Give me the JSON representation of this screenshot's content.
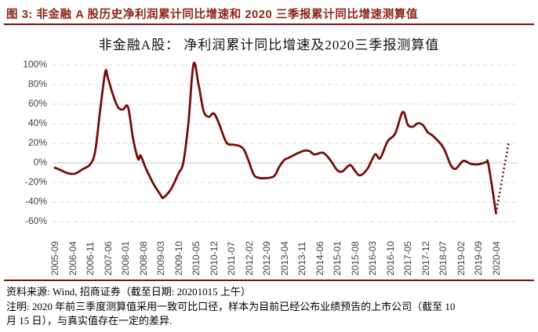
{
  "figure": {
    "caption": "图 3:  非金融 A 股历史净利润累计同比增速和 2020 三季报累计同比增速测算值"
  },
  "footer": {
    "source": "资料来源: Wind, 招商证券（截至日期: 20201015 上午）",
    "note_line1": "注明: 2020 年前三季度测算值采用一致可比口径，样本为目前已经公布业绩预告的上市公司（截至 10",
    "note_line2": "月 15 日），与真实值存在一定的差异."
  },
  "colors": {
    "caption_red": "#8B2415",
    "rule_red": "#7A140B",
    "line_maroon": "#750D06",
    "grid_gray": "#D9D9D9",
    "zero_line_gray": "#C4C4C4",
    "axis_text": "#404040"
  },
  "chart_data": {
    "type": "line",
    "title": "非金融A股： 净利润累计同比增速及2020三季报测算值",
    "xlabel": "",
    "ylabel": "",
    "ylim": [
      -60,
      100
    ],
    "grid": "dashed-horizontal",
    "legend": "none",
    "y_ticks": [
      {
        "label": "100%",
        "value": 100
      },
      {
        "label": "80%",
        "value": 80
      },
      {
        "label": "60%",
        "value": 60
      },
      {
        "label": "40%",
        "value": 40
      },
      {
        "label": "20%",
        "value": 20
      },
      {
        "label": "0%",
        "value": 0
      },
      {
        "label": "-20%",
        "value": -20
      },
      {
        "label": "-40%",
        "value": -40
      },
      {
        "label": "-60%",
        "value": -60
      }
    ],
    "x_tick_labels": [
      "2005-09",
      "2006-04",
      "2006-11",
      "2007-06",
      "2008-01",
      "2008-08",
      "2009-03",
      "2009-10",
      "2010-05",
      "2010-12",
      "2011-07",
      "2012-02",
      "2012-09",
      "2013-04",
      "2013-11",
      "2014-06",
      "2015-01",
      "2015-08",
      "2016-03",
      "2016-10",
      "2017-05",
      "2017-12",
      "2018-07",
      "2019-02",
      "2019-09",
      "2020-04"
    ],
    "x_tick_interval_months": 7,
    "series": [
      {
        "name": "净利润累计同比增速",
        "style": "solid",
        "color": "#750D06",
        "points": [
          [
            "2005-09",
            -5
          ],
          [
            "2005-11",
            -7
          ],
          [
            "2006-02",
            -10.5
          ],
          [
            "2006-05",
            -11
          ],
          [
            "2006-08",
            -6.5
          ],
          [
            "2006-11",
            -1.5
          ],
          [
            "2007-01",
            12
          ],
          [
            "2007-03",
            55
          ],
          [
            "2007-05",
            93
          ],
          [
            "2007-06",
            87
          ],
          [
            "2007-08",
            70
          ],
          [
            "2007-10",
            57
          ],
          [
            "2007-12",
            54.5
          ],
          [
            "2008-02",
            57
          ],
          [
            "2008-04",
            25
          ],
          [
            "2008-06",
            4
          ],
          [
            "2008-07",
            7.5
          ],
          [
            "2008-09",
            -5
          ],
          [
            "2008-12",
            -21
          ],
          [
            "2009-03",
            -33
          ],
          [
            "2009-04",
            -35.5
          ],
          [
            "2009-07",
            -27
          ],
          [
            "2009-10",
            -11
          ],
          [
            "2009-12",
            1
          ],
          [
            "2010-02",
            42
          ],
          [
            "2010-04",
            101
          ],
          [
            "2010-06",
            80
          ],
          [
            "2010-08",
            53
          ],
          [
            "2010-10",
            47
          ],
          [
            "2010-12",
            50.5
          ],
          [
            "2011-02",
            41
          ],
          [
            "2011-05",
            21
          ],
          [
            "2011-08",
            18.5
          ],
          [
            "2011-10",
            17.5
          ],
          [
            "2011-12",
            13.5
          ],
          [
            "2012-02",
            1
          ],
          [
            "2012-04",
            -12.5
          ],
          [
            "2012-06",
            -15.3
          ],
          [
            "2012-09",
            -15.5
          ],
          [
            "2012-12",
            -13.5
          ],
          [
            "2013-02",
            -4
          ],
          [
            "2013-04",
            3
          ],
          [
            "2013-06",
            5.5
          ],
          [
            "2013-09",
            9.5
          ],
          [
            "2013-12",
            12.5
          ],
          [
            "2014-02",
            12
          ],
          [
            "2014-04",
            8.6
          ],
          [
            "2014-07",
            10.5
          ],
          [
            "2014-09",
            7
          ],
          [
            "2014-11",
            0
          ],
          [
            "2015-01",
            -7.5
          ],
          [
            "2015-03",
            -8.8
          ],
          [
            "2015-06",
            -2.2
          ],
          [
            "2015-08",
            -8
          ],
          [
            "2015-10",
            -12.8
          ],
          [
            "2016-01",
            -6
          ],
          [
            "2016-04",
            8.6
          ],
          [
            "2016-06",
            4.6
          ],
          [
            "2016-09",
            22
          ],
          [
            "2016-12",
            30
          ],
          [
            "2017-03",
            52
          ],
          [
            "2017-05",
            39
          ],
          [
            "2017-07",
            37
          ],
          [
            "2017-09",
            40.5
          ],
          [
            "2017-11",
            38.5
          ],
          [
            "2018-01",
            31
          ],
          [
            "2018-03",
            27.5
          ],
          [
            "2018-07",
            16
          ],
          [
            "2018-10",
            -2
          ],
          [
            "2018-12",
            -6
          ],
          [
            "2019-03",
            2
          ],
          [
            "2019-06",
            -1
          ],
          [
            "2019-09",
            -1.5
          ],
          [
            "2019-12",
            0.5
          ],
          [
            "2020-01",
            -2
          ],
          [
            "2020-04",
            -51.5
          ]
        ]
      },
      {
        "name": "2020三季报测算值",
        "style": "dotted",
        "color": "#750D06",
        "points": [
          [
            "2020-04",
            -51.5
          ],
          [
            "2020-09",
            21
          ]
        ]
      }
    ]
  }
}
